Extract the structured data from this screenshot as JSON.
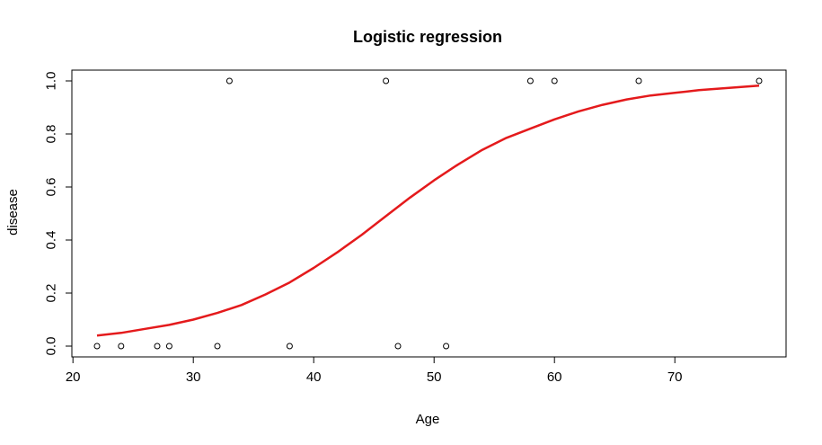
{
  "chart_data": {
    "type": "scatter",
    "title": "Logistic regression",
    "xlabel": "Age",
    "ylabel": "disease",
    "xlim": [
      20,
      78
    ],
    "ylim": [
      0,
      1
    ],
    "x_ticks": [
      20,
      30,
      40,
      50,
      60,
      70
    ],
    "y_ticks": [
      0.0,
      0.2,
      0.4,
      0.6,
      0.8,
      1.0
    ],
    "x_tick_labels": [
      "20",
      "30",
      "40",
      "50",
      "60",
      "70"
    ],
    "y_tick_labels": [
      "0.0",
      "0.2",
      "0.4",
      "0.6",
      "0.8",
      "1.0"
    ],
    "grid": false,
    "legend": false,
    "points": [
      {
        "x": 22,
        "y": 0
      },
      {
        "x": 24,
        "y": 0
      },
      {
        "x": 27,
        "y": 0
      },
      {
        "x": 28,
        "y": 0
      },
      {
        "x": 32,
        "y": 0
      },
      {
        "x": 33,
        "y": 1
      },
      {
        "x": 38,
        "y": 0
      },
      {
        "x": 46,
        "y": 1
      },
      {
        "x": 47,
        "y": 0
      },
      {
        "x": 51,
        "y": 0
      },
      {
        "x": 58,
        "y": 1
      },
      {
        "x": 60,
        "y": 1
      },
      {
        "x": 67,
        "y": 1
      },
      {
        "x": 77,
        "y": 1
      }
    ],
    "curve": {
      "type": "line",
      "color": "#e41a1c",
      "x": [
        22,
        24,
        26,
        28,
        30,
        32,
        34,
        36,
        38,
        40,
        42,
        44,
        46,
        48,
        50,
        52,
        54,
        56,
        58,
        60,
        62,
        64,
        66,
        68,
        70,
        72,
        74,
        77
      ],
      "y": [
        0.04,
        0.05,
        0.065,
        0.08,
        0.1,
        0.125,
        0.155,
        0.195,
        0.24,
        0.295,
        0.355,
        0.42,
        0.49,
        0.56,
        0.625,
        0.685,
        0.74,
        0.785,
        0.82,
        0.855,
        0.885,
        0.91,
        0.93,
        0.945,
        0.955,
        0.965,
        0.972,
        0.982
      ]
    },
    "point_color": "#000000"
  }
}
